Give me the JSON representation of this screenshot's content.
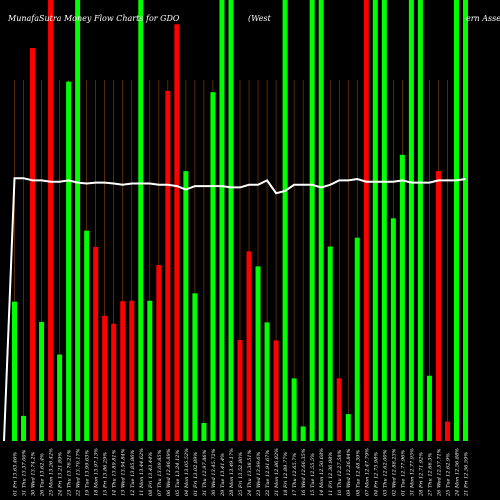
{
  "header": {
    "left_title": "MunafaSutra  Money Flow  Charts for GDO",
    "mid_title": "(West",
    "right_title": "ern  Asse"
  },
  "colors": {
    "background": "#000000",
    "bull": "#00ff00",
    "bear": "#ff0000",
    "grid": "#8b4513",
    "line": "#ffffff"
  },
  "chart_data": {
    "type": "bar",
    "title": "MunafaSutra  Money Flow  Charts for GDO",
    "xlabel": "",
    "ylabel": "",
    "ylim": [
      0,
      100
    ],
    "categories": [
      "01 Fri 13.63.46%",
      "31 Thu 13.37.00%",
      "30 Wed 13.74.2%",
      "26 Tue 13.62.4%",
      "25 Mon 13.26.42%",
      "24 Fri 13.21.89%",
      "23 Thu 13.76.21%",
      "22 Wed 13.70.17%",
      "19 Tue 13.99.63%",
      "18 Mon 13.97.13%",
      "15 Fri 13.86.29%",
      "14 Thu 13.89.81%",
      "13 Wed 13.94.84%",
      "12 Tue 13.85.86%",
      "11 Mon 13.44.62%",
      "08 Fri 13.43.44%",
      "07 Thu 13.09.85%",
      "06 Wed 12.86.89%",
      "05 Tue 13.24.12%",
      "04 Mon 13.05.52%",
      "01 Fri 13.02.89%",
      "31 Thu 12.97.86%",
      "30 Wed 13.45.72%",
      "29 Tue 13.41.4%",
      "28 Mon 13.49.17%",
      "25 Fri 13.52.80%",
      "24 Thu 13.38.51%",
      "23 Wed 13.99.6%",
      "22 Tue 12.91.67%",
      "21 Mon 12.86.82%",
      "18 Fri 12.89.77%",
      "17 Thu 12.65.7%",
      "16 Wed 12.66.35%",
      "15 Tue 12.55.5%",
      "14 Mon 12.50.68%",
      "11 Fri 12.36.98%",
      "10 Thu 12.27.58%",
      "09 Wed 12.26.84%",
      "08 Tue 12.48.39%",
      "07 Mon 12.47.79%",
      "04 Fri 12.73.98%",
      "03 Thu 12.62.00%",
      "02 Wed 12.88.23%",
      "01 Tue 12.77.96%",
      "31 Mon 12.77.95%",
      "28 Fri 12.71.92%",
      "27 Thu 12.66.3%",
      "26 Wed 12.57.71%",
      "25 Tue 12.62.9%",
      "24 Mon 12.56.88%",
      "21 Fri 12.56.59%"
    ],
    "series": [
      {
        "colors": [
          "bull",
          "bull",
          "bear",
          "bull",
          "bear",
          "bull",
          "bull",
          "bull",
          "bull",
          "bear",
          "bear",
          "bear",
          "bear",
          "bear",
          "bull",
          "bull",
          "bear",
          "bear",
          "bear",
          "bull",
          "bull",
          "bull",
          "bull",
          "bull",
          "bull",
          "bear",
          "bear",
          "bull",
          "bull",
          "bear",
          "bull",
          "bull",
          "bull",
          "bull",
          "bull",
          "bull",
          "bear",
          "bull",
          "bull",
          "bear",
          "bull",
          "bull",
          "bull",
          "bull",
          "bull",
          "bull",
          "bull",
          "bear",
          "bear",
          "bull",
          "bull"
        ],
        "values": [
          31.6,
          5.7,
          89.1,
          27.0,
          100,
          19.6,
          81.5,
          100,
          47.7,
          44.0,
          28.4,
          26.6,
          31.7,
          31.8,
          100,
          31.8,
          39.9,
          79.4,
          94.5,
          61.2,
          33.5,
          4.1,
          79.1,
          100,
          100,
          22.9,
          43.0,
          39.6,
          26.9,
          22.8,
          100,
          14.2,
          3.3,
          100,
          100,
          44.1,
          14.2,
          6.1,
          46.1,
          100,
          100,
          100,
          50.5,
          64.9,
          100,
          100,
          14.8,
          61.2,
          4.4,
          100,
          100
        ]
      },
      {
        "name": "",
        "values": [
          59.6,
          59.6,
          59.1,
          59.1,
          58.8,
          58.8,
          59.1,
          58.6,
          58.4,
          58.6,
          58.6,
          58.4,
          58.1,
          58.4,
          58.4,
          58.4,
          58.1,
          58.1,
          57.8,
          57.0,
          57.8,
          57.8,
          57.8,
          57.8,
          57.5,
          57.5,
          58.1,
          58.1,
          59.1,
          56.2,
          56.7,
          58.1,
          58.1,
          58.1,
          57.5,
          58.1,
          59.1,
          59.1,
          59.4,
          58.8,
          58.8,
          58.8,
          58.8,
          59.1,
          58.6,
          58.6,
          58.6,
          59.1,
          59.1,
          59.1,
          59.4
        ]
      }
    ],
    "grid": true
  }
}
